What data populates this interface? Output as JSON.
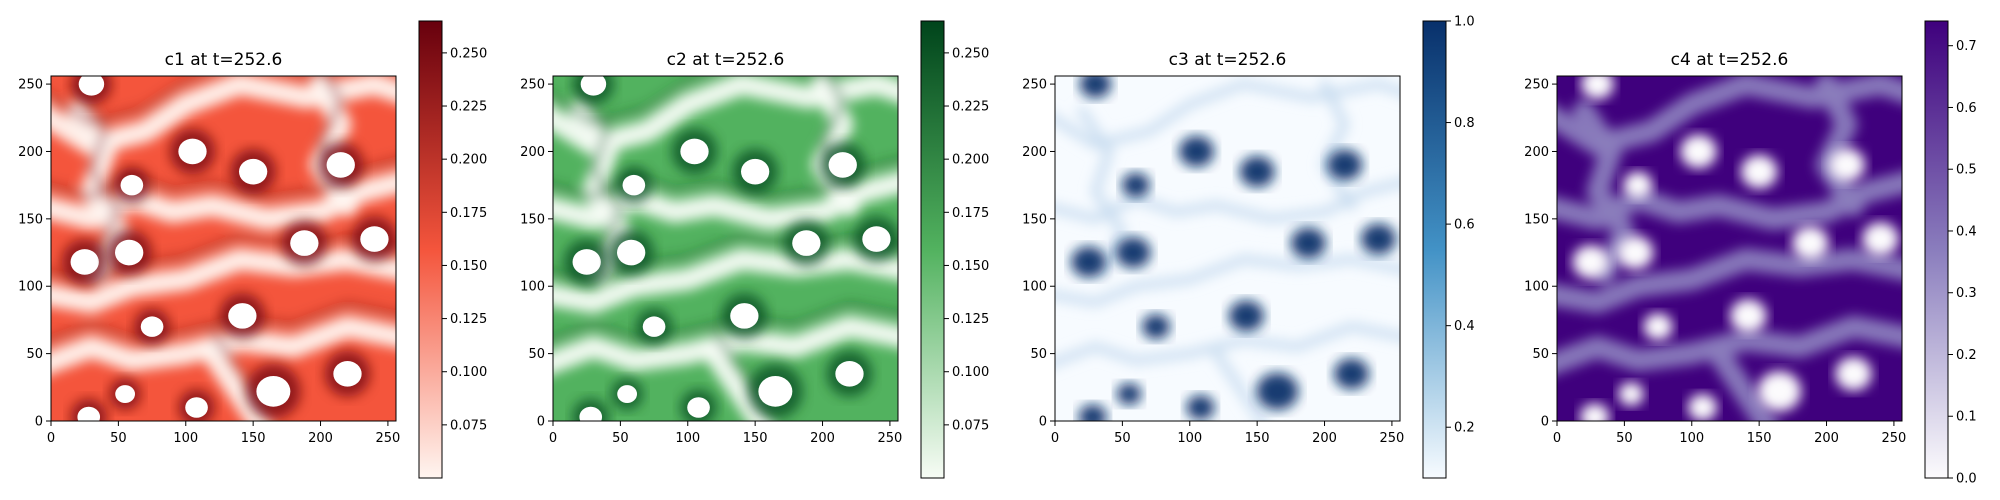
{
  "figure": {
    "description_type": "heatmap-grid"
  },
  "chart_data": [
    {
      "type": "heatmap",
      "title": "c1 at t=252.6",
      "xlim": [
        0,
        256
      ],
      "ylim": [
        0,
        256
      ],
      "xticks": [
        0,
        50,
        100,
        150,
        200,
        250
      ],
      "yticks": [
        0,
        50,
        100,
        150,
        200,
        250
      ],
      "colormap": "Reds",
      "color_low": "#fff5f0",
      "color_mid": "#f4553c",
      "color_high": "#67000d",
      "colorbar": {
        "min": 0.05,
        "max": 0.265,
        "ticks": [
          0.075,
          0.1,
          0.125,
          0.15,
          0.175,
          0.2,
          0.225,
          0.25
        ],
        "tick_labels": [
          "0.075",
          "0.100",
          "0.125",
          "0.150",
          "0.175",
          "0.200",
          "0.225",
          "0.250"
        ]
      },
      "invert": false
    },
    {
      "type": "heatmap",
      "title": "c2 at t=252.6",
      "xlim": [
        0,
        256
      ],
      "ylim": [
        0,
        256
      ],
      "xticks": [
        0,
        50,
        100,
        150,
        200,
        250
      ],
      "yticks": [
        0,
        50,
        100,
        150,
        200,
        250
      ],
      "colormap": "Greens",
      "color_low": "#f7fcf5",
      "color_mid": "#52b25f",
      "color_high": "#00441b",
      "colorbar": {
        "min": 0.05,
        "max": 0.265,
        "ticks": [
          0.075,
          0.1,
          0.125,
          0.15,
          0.175,
          0.2,
          0.225,
          0.25
        ],
        "tick_labels": [
          "0.075",
          "0.100",
          "0.125",
          "0.150",
          "0.175",
          "0.200",
          "0.225",
          "0.250"
        ]
      },
      "invert": false
    },
    {
      "type": "heatmap",
      "title": "c3 at t=252.6",
      "xlim": [
        0,
        256
      ],
      "ylim": [
        0,
        256
      ],
      "xticks": [
        0,
        50,
        100,
        150,
        200,
        250
      ],
      "yticks": [
        0,
        50,
        100,
        150,
        200,
        250
      ],
      "colormap": "Blues",
      "color_low": "#f7fbff",
      "color_mid": "#4292c6",
      "color_high": "#08306b",
      "colorbar": {
        "min": 0.1,
        "max": 1.0,
        "ticks": [
          0.2,
          0.4,
          0.6,
          0.8,
          1.0
        ],
        "tick_labels": [
          "0.2",
          "0.4",
          "0.6",
          "0.8",
          "1.0"
        ]
      },
      "invert": false
    },
    {
      "type": "heatmap",
      "title": "c4 at t=252.6",
      "xlim": [
        0,
        256
      ],
      "ylim": [
        0,
        256
      ],
      "xticks": [
        0,
        50,
        100,
        150,
        200,
        250
      ],
      "yticks": [
        0,
        50,
        100,
        150,
        200,
        250
      ],
      "colormap": "Purples",
      "color_low": "#fcfbfd",
      "color_mid": "#8a7dbd",
      "color_high": "#3f007d",
      "colorbar": {
        "min": 0.0,
        "max": 0.74,
        "ticks": [
          0.0,
          0.1,
          0.2,
          0.3,
          0.4,
          0.5,
          0.6,
          0.7
        ],
        "tick_labels": [
          "0.0",
          "0.1",
          "0.2",
          "0.3",
          "0.4",
          "0.5",
          "0.6",
          "0.7"
        ]
      },
      "invert": true
    }
  ]
}
